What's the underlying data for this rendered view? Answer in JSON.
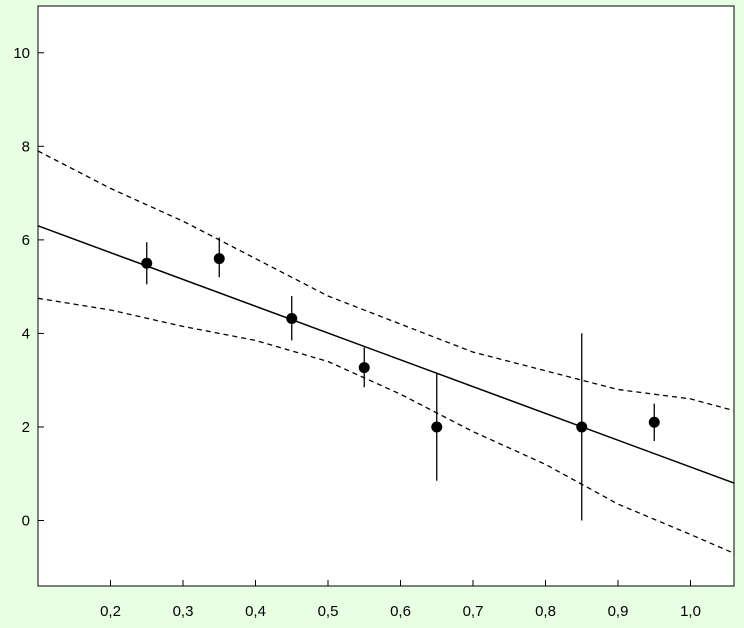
{
  "colors": {
    "background": "#e9ffe4",
    "plot_background": "#ffffff",
    "ink": "#000000"
  },
  "chart_data": {
    "type": "scatter",
    "title": "",
    "xlabel": "",
    "ylabel": "",
    "xlim": [
      0.1,
      1.06
    ],
    "ylim": [
      -1.4,
      11.0
    ],
    "grid": false,
    "legend": "none",
    "x_ticks": [
      {
        "value": 0.2,
        "label": "0,2"
      },
      {
        "value": 0.3,
        "label": "0,3"
      },
      {
        "value": 0.4,
        "label": "0,4"
      },
      {
        "value": 0.5,
        "label": "0,5"
      },
      {
        "value": 0.6,
        "label": "0,6"
      },
      {
        "value": 0.7,
        "label": "0,7"
      },
      {
        "value": 0.8,
        "label": "0,8"
      },
      {
        "value": 0.9,
        "label": "0,9"
      },
      {
        "value": 1.0,
        "label": "1,0"
      }
    ],
    "y_ticks": [
      {
        "value": 0,
        "label": "0"
      },
      {
        "value": 2,
        "label": "2"
      },
      {
        "value": 4,
        "label": "4"
      },
      {
        "value": 6,
        "label": "6"
      },
      {
        "value": 8,
        "label": "8"
      },
      {
        "value": 10,
        "label": "10"
      }
    ],
    "points": [
      {
        "x": 0.25,
        "y": 5.5,
        "err_low": 5.05,
        "err_high": 5.95
      },
      {
        "x": 0.35,
        "y": 5.6,
        "err_low": 5.2,
        "err_high": 6.05
      },
      {
        "x": 0.45,
        "y": 4.32,
        "err_low": 3.85,
        "err_high": 4.8
      },
      {
        "x": 0.55,
        "y": 3.27,
        "err_low": 2.85,
        "err_high": 3.7
      },
      {
        "x": 0.65,
        "y": 2.0,
        "err_low": 0.85,
        "err_high": 3.15
      },
      {
        "x": 0.85,
        "y": 2.0,
        "err_low": 0.0,
        "err_high": 4.0
      },
      {
        "x": 0.95,
        "y": 2.1,
        "err_low": 1.7,
        "err_high": 2.5
      }
    ],
    "fit_line": [
      {
        "x": 0.1,
        "y": 6.3
      },
      {
        "x": 1.06,
        "y": 0.8
      }
    ],
    "upper_band": [
      {
        "x": 0.1,
        "y": 7.9
      },
      {
        "x": 0.2,
        "y": 7.1
      },
      {
        "x": 0.3,
        "y": 6.4
      },
      {
        "x": 0.4,
        "y": 5.6
      },
      {
        "x": 0.5,
        "y": 4.8
      },
      {
        "x": 0.6,
        "y": 4.2
      },
      {
        "x": 0.7,
        "y": 3.6
      },
      {
        "x": 0.8,
        "y": 3.2
      },
      {
        "x": 0.9,
        "y": 2.8
      },
      {
        "x": 1.0,
        "y": 2.6
      },
      {
        "x": 1.06,
        "y": 2.35
      }
    ],
    "lower_band": [
      {
        "x": 0.1,
        "y": 4.75
      },
      {
        "x": 0.2,
        "y": 4.5
      },
      {
        "x": 0.3,
        "y": 4.15
      },
      {
        "x": 0.4,
        "y": 3.85
      },
      {
        "x": 0.5,
        "y": 3.4
      },
      {
        "x": 0.6,
        "y": 2.7
      },
      {
        "x": 0.7,
        "y": 1.9
      },
      {
        "x": 0.8,
        "y": 1.2
      },
      {
        "x": 0.9,
        "y": 0.35
      },
      {
        "x": 1.0,
        "y": -0.3
      },
      {
        "x": 1.06,
        "y": -0.7
      }
    ]
  }
}
